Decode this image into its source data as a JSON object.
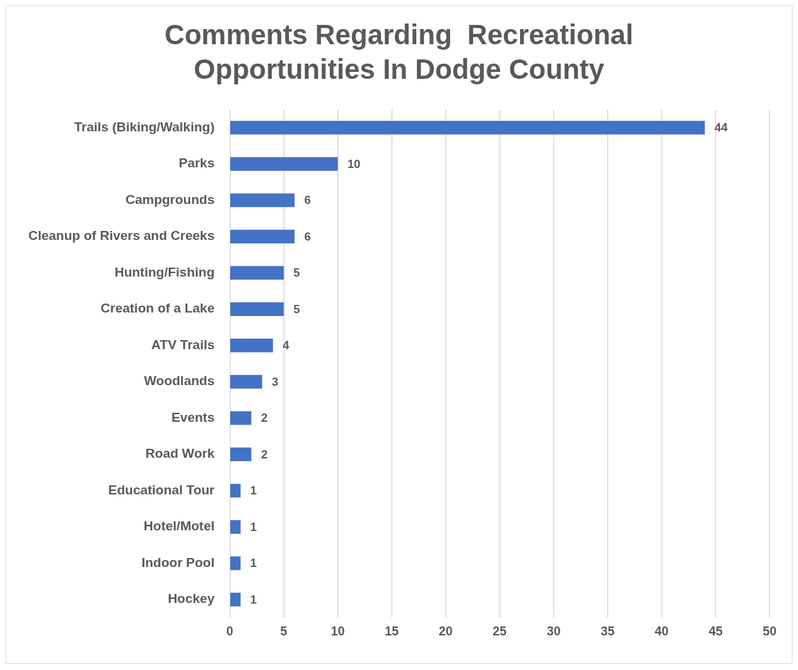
{
  "chart_data": {
    "type": "bar",
    "orientation": "horizontal",
    "title": "Comments Regarding  Recreational Opportunities In Dodge County",
    "categories": [
      "Trails (Biking/Walking)",
      "Parks",
      "Campgrounds",
      "Cleanup of Rivers and Creeks",
      "Hunting/Fishing",
      "Creation of a Lake",
      "ATV Trails",
      "Woodlands",
      "Events",
      "Road Work",
      "Educational Tour",
      "Hotel/Motel",
      "Indoor Pool",
      "Hockey"
    ],
    "values": [
      44,
      10,
      6,
      6,
      5,
      5,
      4,
      3,
      2,
      2,
      1,
      1,
      1,
      1
    ],
    "color": "#4472c4",
    "xlim": [
      0,
      50
    ],
    "xticks": [
      0,
      5,
      10,
      15,
      20,
      25,
      30,
      35,
      40,
      45,
      50
    ],
    "grid": "x",
    "data_labels": true,
    "legend": false
  }
}
